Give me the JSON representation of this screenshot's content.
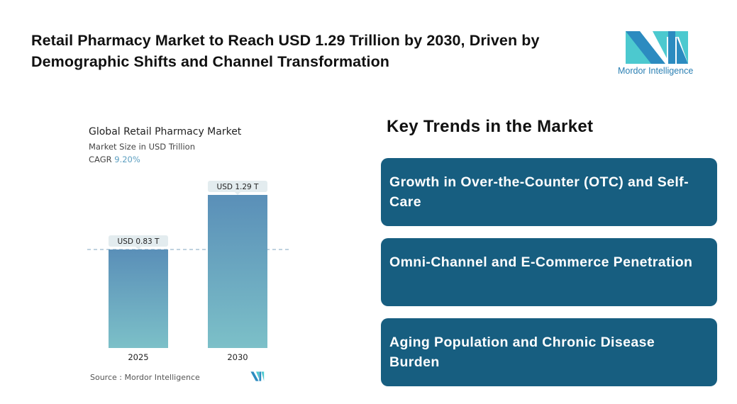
{
  "header": {
    "title": "Retail Pharmacy Market to Reach USD 1.29 Trillion by 2030, Driven by Demographic Shifts and Channel Transformation",
    "logo_text": "Mordor Intelligence"
  },
  "chart_data": {
    "type": "bar",
    "title": "Global Retail Pharmacy Market",
    "subtitle": "Market Size in USD Trillion",
    "cagr_label": "CAGR",
    "cagr_value": "9.20%",
    "categories": [
      "2025",
      "2030"
    ],
    "values": [
      0.83,
      1.29
    ],
    "data_labels": [
      "USD 0.83 T",
      "USD 1.29 T"
    ],
    "ylim": [
      0,
      1.29
    ],
    "colors": {
      "bar_top": "#5a8fb8",
      "bar_bottom": "#7cc0c8",
      "label_bg": "#e3ecef",
      "reference_line": "#7fa6bf"
    },
    "source": "Source :  Mordor Intelligence"
  },
  "trends": {
    "heading": "Key Trends in the Market",
    "items": [
      "Growth in Over-the-Counter (OTC) and Self-Care",
      "Omni-Channel and E-Commerce Penetration",
      "Aging Population and Chronic Disease Burden"
    ],
    "color": "#175e80"
  }
}
